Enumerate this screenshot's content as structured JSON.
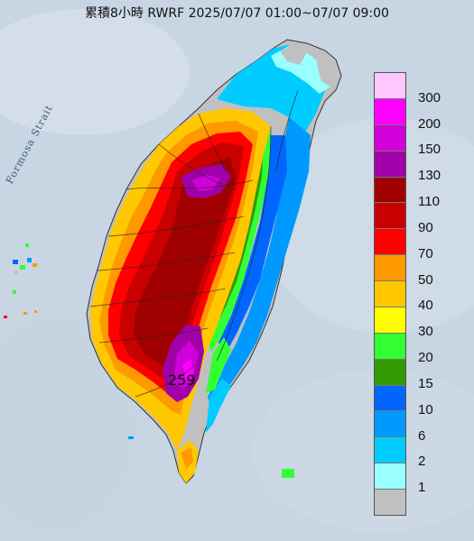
{
  "title": "累積8小時 RWRF 2025/07/07 01:00~07/07 09:00",
  "strait_label": "Formosa Strait",
  "max_value_label": "259",
  "legend": {
    "labels": [
      "300",
      "200",
      "150",
      "130",
      "110",
      "90",
      "70",
      "50",
      "40",
      "30",
      "20",
      "15",
      "10",
      "6",
      "2",
      "1"
    ],
    "colors": [
      "#ffc8ff",
      "#ff00ff",
      "#d000d8",
      "#a000a8",
      "#a00000",
      "#c80000",
      "#ff0000",
      "#ff9900",
      "#ffc800",
      "#ffff00",
      "#33ff33",
      "#339900",
      "#0066ff",
      "#0099ff",
      "#00ccff",
      "#99ffff",
      "#c0c0c0"
    ]
  },
  "colors": {
    "sea": "#c9d6e3",
    "land_base": "#c0c0c0",
    "accent_max": "#cc00cc"
  }
}
